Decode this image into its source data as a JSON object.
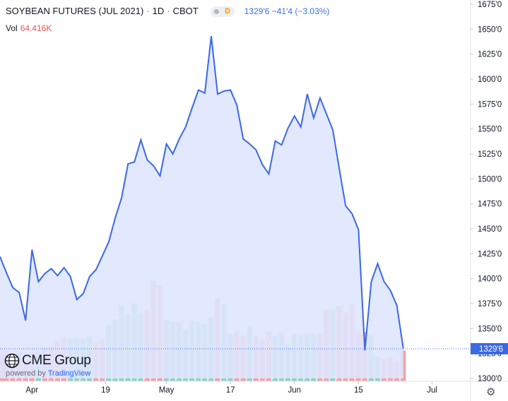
{
  "header": {
    "title": "SOYBEAN FUTURES (JUL 2021)",
    "interval": "1D",
    "exchange": "CBOT",
    "badge_label": "D",
    "last_change": "1329'6  −41'4 (−3.03%)"
  },
  "volume": {
    "label": "Vol",
    "value": "64.416K"
  },
  "logo": {
    "name": "CME Group",
    "powered_prefix": "powered by",
    "powered_brand": "TradingView"
  },
  "settings_icon": "gear-icon",
  "colors": {
    "line": "#3a68e6",
    "area_fill": "#dfe6fd",
    "up_volume": "#8fd1c5",
    "down_volume": "#f0a3a8",
    "axis_text": "#131722",
    "last_price_label": "#3a68e6"
  },
  "chart_data": {
    "type": "area",
    "title": "SOYBEAN FUTURES (JUL 2021)",
    "xlabel": "",
    "ylabel": "",
    "x_ticks": [
      "Apr",
      "19",
      "May",
      "17",
      "Jun",
      "15",
      "Jul"
    ],
    "y_ticks": [
      "1300'0",
      "1325'0",
      "1350'0",
      "1375'0",
      "1400'0",
      "1425'0",
      "1450'0",
      "1475'0",
      "1500'0",
      "1525'0",
      "1550'0",
      "1575'0",
      "1600'0",
      "1625'0",
      "1650'0",
      "1675'0"
    ],
    "y_tick_values": [
      1300,
      1325,
      1350,
      1375,
      1400,
      1425,
      1450,
      1475,
      1500,
      1525,
      1550,
      1575,
      1600,
      1625,
      1650,
      1675
    ],
    "ylim": [
      1300,
      1675
    ],
    "last_price_label": "1329'6",
    "last_price": 1329.75,
    "grid": false,
    "series": [
      {
        "values": [
          1422,
          1406,
          1391,
          1386,
          1358,
          1429,
          1397,
          1405,
          1410,
          1403,
          1411,
          1402,
          1379,
          1385,
          1402,
          1409,
          1423,
          1437,
          1461,
          1481,
          1515,
          1517,
          1539,
          1519,
          1513,
          1503,
          1535,
          1525,
          1540,
          1552,
          1571,
          1589,
          1586,
          1643,
          1585,
          1588,
          1589,
          1574,
          1540,
          1535,
          1529,
          1514,
          1505,
          1538,
          1534,
          1551,
          1563,
          1552,
          1585,
          1561,
          1581,
          1565,
          1549,
          1510,
          1473,
          1465,
          1449,
          1328,
          1397,
          1415,
          1397,
          1388,
          1373,
          1330
        ]
      },
      {
        "name": "Vol",
        "values": [
          28,
          28,
          24,
          28,
          20,
          28,
          29,
          33,
          34,
          39,
          43,
          42,
          42,
          41,
          44,
          37,
          41,
          55,
          60,
          74,
          65,
          76,
          67,
          70,
          98,
          94,
          60,
          58,
          58,
          51,
          59,
          58,
          56,
          62,
          81,
          75,
          46,
          49,
          45,
          53,
          44,
          41,
          49,
          45,
          48,
          36,
          47,
          45,
          47,
          47,
          47,
          70,
          70,
          74,
          67,
          76,
          48,
          48,
          45,
          24,
          22,
          23,
          20,
          30
        ],
        "down": [
          true,
          true,
          true,
          true,
          true,
          true,
          false,
          true,
          true,
          true,
          true,
          false,
          false,
          false,
          false,
          true,
          true,
          false,
          false,
          false,
          false,
          false,
          false,
          true,
          true,
          true,
          false,
          false,
          false,
          false,
          false,
          false,
          false,
          false,
          true,
          false,
          false,
          true,
          true,
          false,
          true,
          true,
          true,
          false,
          false,
          false,
          false,
          false,
          false,
          false,
          true,
          true,
          false,
          true,
          true,
          true,
          true,
          true,
          false,
          false,
          true,
          true,
          true,
          true
        ]
      }
    ]
  }
}
